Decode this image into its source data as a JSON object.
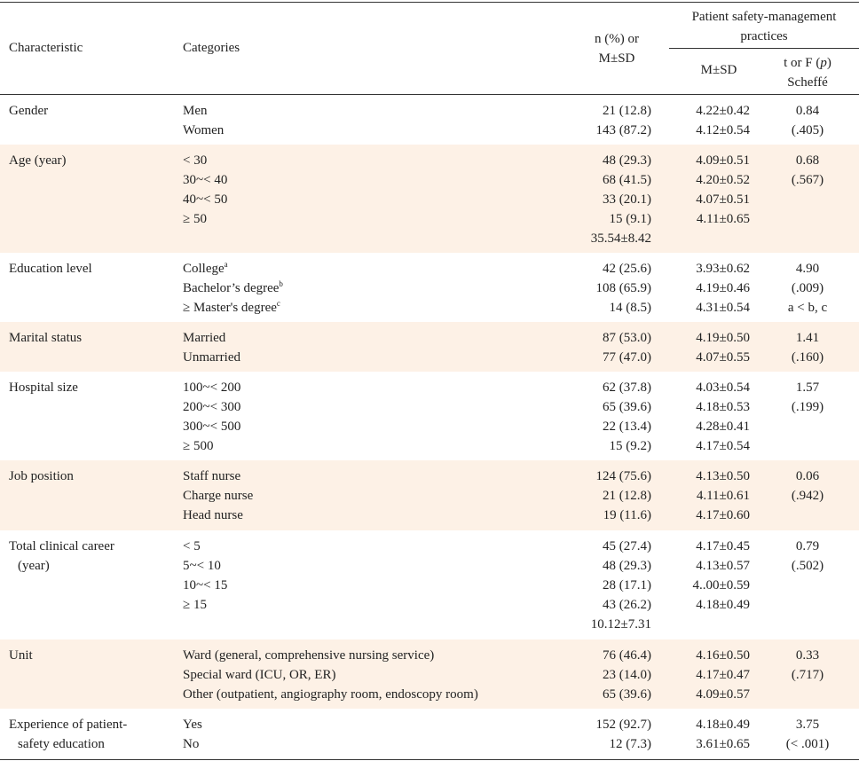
{
  "header": {
    "characteristic": "Characteristic",
    "categories": "Categories",
    "n_line1": "n (%) or",
    "n_line2": "M±SD",
    "group_line1": "Patient safety-management",
    "group_line2": "practices",
    "msd": "M±SD",
    "t_line1_prefix": "t or F (",
    "t_line1_p": "p",
    "t_line1_suffix": ")",
    "t_line2": "Scheffé"
  },
  "band_color": "#fdf1e6",
  "rows": [
    {
      "char": [
        "Gender"
      ],
      "cats": [
        {
          "t": "Men"
        },
        {
          "t": "Women"
        }
      ],
      "n": [
        "21 (12.8)",
        "143 (87.2)"
      ],
      "msd": [
        "4.22±0.42",
        "4.12±0.54"
      ],
      "stat": [
        "0.84",
        "(.405)"
      ]
    },
    {
      "char": [
        "Age (year)"
      ],
      "cats": [
        {
          "t": "< 30"
        },
        {
          "t": "30~< 40"
        },
        {
          "t": "40~< 50"
        },
        {
          "t": "≥ 50"
        }
      ],
      "n": [
        "48 (29.3)",
        "68 (41.5)",
        "33 (20.1)",
        "15 (9.1)",
        "35.54±8.42"
      ],
      "msd": [
        "4.09±0.51",
        "4.20±0.52",
        "4.07±0.51",
        "4.11±0.65"
      ],
      "stat": [
        "0.68",
        "(.567)"
      ]
    },
    {
      "char": [
        "Education level"
      ],
      "cats": [
        {
          "t": "College",
          "sup": "a"
        },
        {
          "t": "Bachelor’s degree",
          "sup": "b"
        },
        {
          "t": "≥ Master's degree",
          "sup": "c"
        }
      ],
      "n": [
        "42 (25.6)",
        "108 (65.9)",
        "14 (8.5)"
      ],
      "msd": [
        "3.93±0.62",
        "4.19±0.46",
        "4.31±0.54"
      ],
      "stat": [
        "4.90",
        "(.009)",
        "a < b, c"
      ]
    },
    {
      "char": [
        "Marital status"
      ],
      "cats": [
        {
          "t": "Married"
        },
        {
          "t": "Unmarried"
        }
      ],
      "n": [
        "87 (53.0)",
        "77 (47.0)"
      ],
      "msd": [
        "4.19±0.50",
        "4.07±0.55"
      ],
      "stat": [
        "1.41",
        "(.160)"
      ]
    },
    {
      "char": [
        "Hospital size"
      ],
      "cats": [
        {
          "t": "100~< 200"
        },
        {
          "t": "200~< 300"
        },
        {
          "t": "300~< 500"
        },
        {
          "t": "≥ 500"
        }
      ],
      "n": [
        "62 (37.8)",
        "65 (39.6)",
        "22 (13.4)",
        "15 (9.2)"
      ],
      "msd": [
        "4.03±0.54",
        "4.18±0.53",
        "4.28±0.41",
        "4.17±0.54"
      ],
      "stat": [
        "1.57",
        "(.199)"
      ]
    },
    {
      "char": [
        "Job position"
      ],
      "cats": [
        {
          "t": "Staff nurse"
        },
        {
          "t": "Charge nurse"
        },
        {
          "t": "Head nurse"
        }
      ],
      "n": [
        "124 (75.6)",
        "21 (12.8)",
        "19 (11.6)"
      ],
      "msd": [
        "4.13±0.50",
        "4.11±0.61",
        "4.17±0.60"
      ],
      "stat": [
        "0.06",
        "(.942)"
      ]
    },
    {
      "char": [
        "Total clinical career",
        "(year)"
      ],
      "cats": [
        {
          "t": "< 5"
        },
        {
          "t": "5~< 10"
        },
        {
          "t": "10~< 15"
        },
        {
          "t": "≥ 15"
        }
      ],
      "n": [
        "45 (27.4)",
        "48 (29.3)",
        "28 (17.1)",
        "43 (26.2)",
        "10.12±7.31"
      ],
      "msd": [
        "4.17±0.45",
        "4.13±0.57",
        "4..00±0.59",
        "4.18±0.49"
      ],
      "stat": [
        "0.79",
        "(.502)"
      ]
    },
    {
      "char": [
        "Unit"
      ],
      "cats": [
        {
          "t": "Ward (general, comprehensive nursing service)"
        },
        {
          "t": "Special ward (ICU, OR, ER)"
        },
        {
          "t": "Other (outpatient, angiography room, endoscopy room)"
        }
      ],
      "n": [
        "76 (46.4)",
        "23 (14.0)",
        "65 (39.6)"
      ],
      "msd": [
        "4.16±0.50",
        "4.17±0.47",
        "4.09±0.57"
      ],
      "stat": [
        "0.33",
        "(.717)"
      ]
    },
    {
      "char": [
        "Experience of patient-",
        "safety education"
      ],
      "cats": [
        {
          "t": "Yes"
        },
        {
          "t": "No"
        }
      ],
      "n": [
        "152 (92.7)",
        "12 (7.3)"
      ],
      "msd": [
        "4.18±0.49",
        "3.61±0.65"
      ],
      "stat": [
        "3.75",
        "(< .001)"
      ]
    }
  ]
}
